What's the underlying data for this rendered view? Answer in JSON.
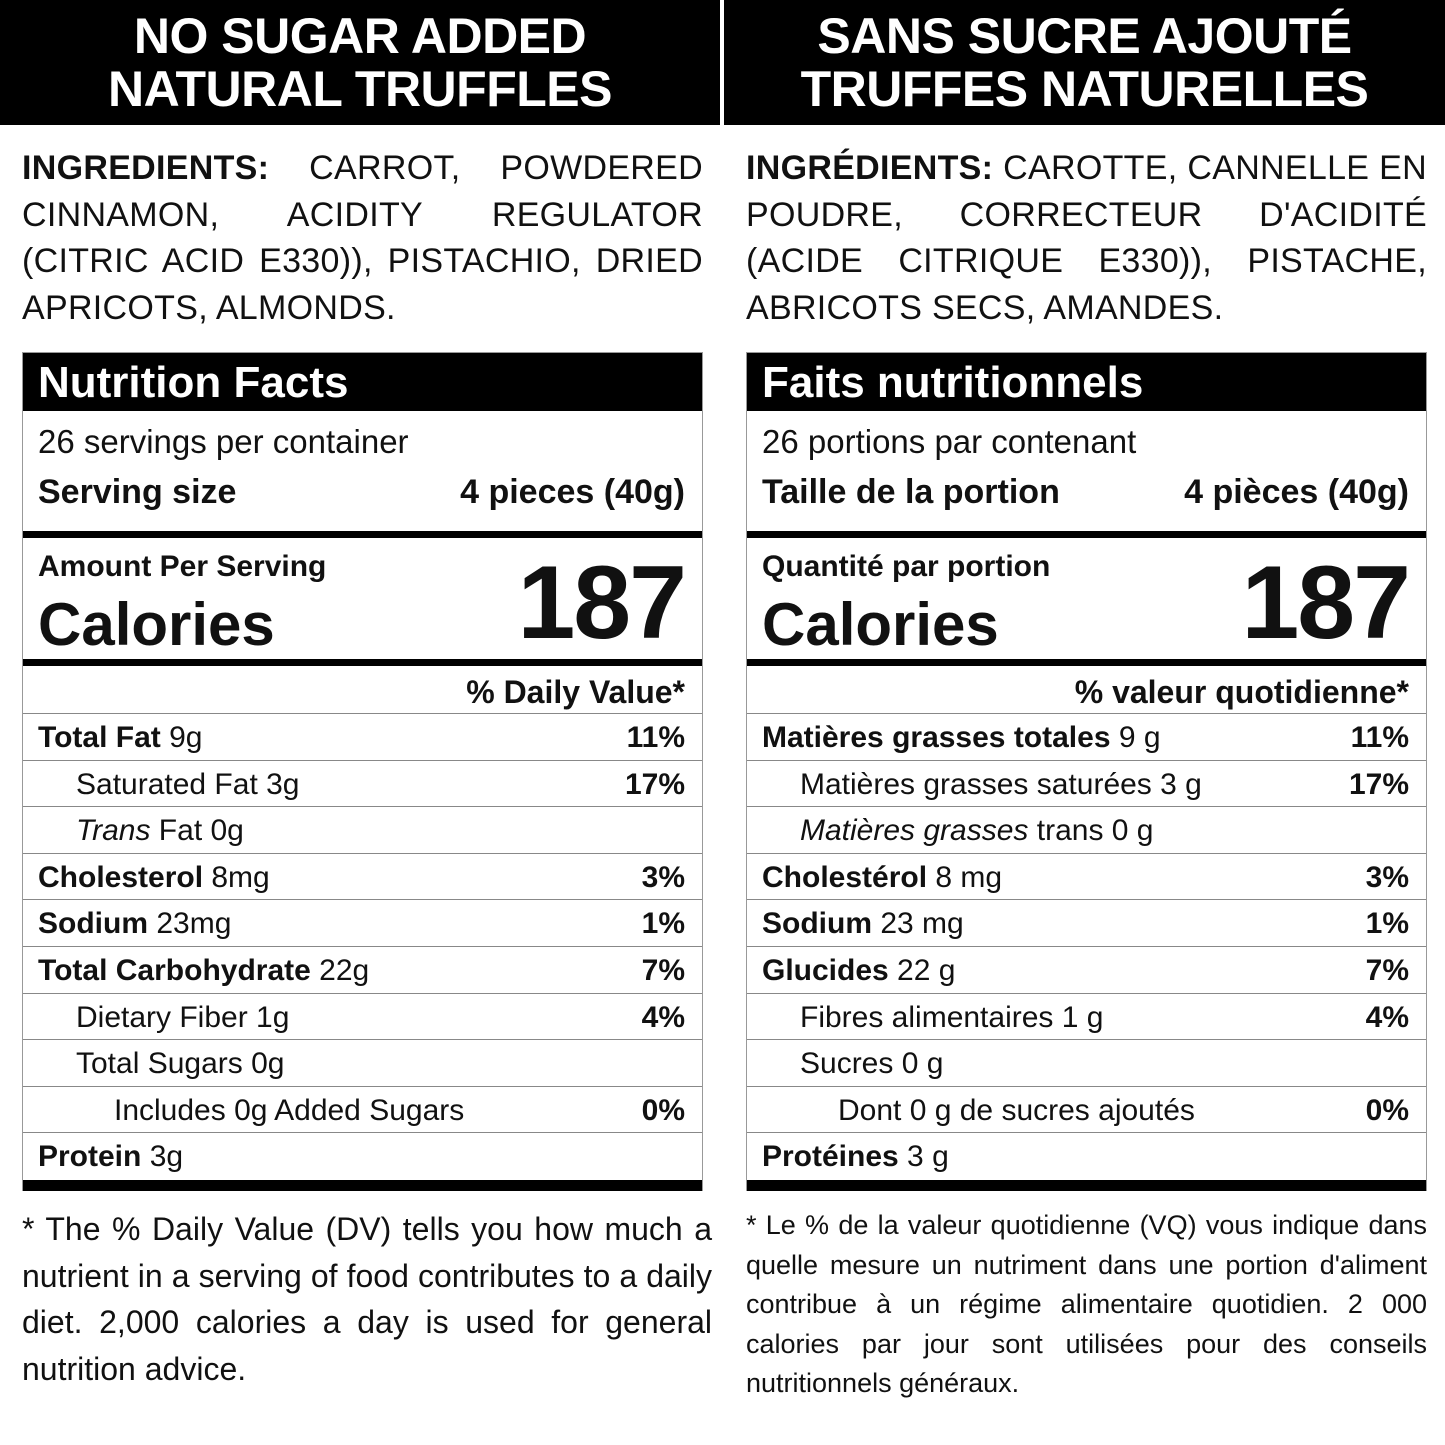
{
  "en": {
    "header": [
      "NO SUGAR ADDED",
      "NATURAL TRUFFLES"
    ],
    "ingredients_label": "INGREDIENTS:",
    "ingredients": " CARROT, POWDERED CINNAMON, ACIDITY REGULATOR (CITRIC ACID E330)), PISTACHIO, DRIED APRICOTS, ALMONDS.",
    "title": "Nutrition Facts",
    "servings": "26 servings per container",
    "serving_size_label": "Serving size",
    "serving_size": "4 pieces (40g)",
    "amount_per_serving": "Amount Per Serving",
    "calories_label": "Calories",
    "calories": "187",
    "dv_header": "% Daily Value*",
    "rows": [
      {
        "bold": "Total Fat",
        "rest": " 9g",
        "dv": "11%",
        "indent": 0
      },
      {
        "rest": "Saturated Fat 3g",
        "dv": "17%",
        "indent": 1
      },
      {
        "italic": "Trans",
        "rest": " Fat 0g",
        "dv": "",
        "indent": 1
      },
      {
        "bold": "Cholesterol",
        "rest": " 8mg",
        "dv": "3%",
        "indent": 0
      },
      {
        "bold": "Sodium",
        "rest": " 23mg",
        "dv": "1%",
        "indent": 0
      },
      {
        "bold": "Total Carbohydrate",
        "rest": " 22g",
        "dv": "7%",
        "indent": 0
      },
      {
        "rest": "Dietary Fiber 1g",
        "dv": "4%",
        "indent": 1
      },
      {
        "rest": "Total Sugars 0g",
        "dv": "",
        "indent": 1
      },
      {
        "rest": "Includes 0g Added Sugars",
        "dv": "0%",
        "indent": 2
      },
      {
        "bold": "Protein",
        "rest": " 3g",
        "dv": "",
        "indent": 0
      }
    ],
    "footnote": "* The % Daily Value (DV) tells you how much a nutrient in a serving of food contributes to a daily diet. 2,000 calories a day is used for general nutrition advice."
  },
  "fr": {
    "header": [
      "SANS SUCRE AJOUTÉ",
      "TRUFFES NATURELLES"
    ],
    "ingredients_label": "INGRÉDIENTS:",
    "ingredients": " CAROTTE, CANNELLE EN POUDRE, CORRECTEUR D'ACIDITÉ (ACIDE CITRIQUE E330)), PISTACHE, ABRICOTS SECS, AMANDES.",
    "title": "Faits nutritionnels",
    "servings": "26 portions par contenant",
    "serving_size_label": "Taille de la portion",
    "serving_size": "4 pièces (40g)",
    "amount_per_serving": "Quantité par portion",
    "calories_label": "Calories",
    "calories": "187",
    "dv_header": "% valeur quotidienne*",
    "rows": [
      {
        "bold": "Matières grasses totales",
        "rest": " 9 g",
        "dv": "11%",
        "indent": 0
      },
      {
        "rest": "Matières grasses saturées 3 g",
        "dv": "17%",
        "indent": 1
      },
      {
        "italic": "Matières grasses",
        "rest": " trans 0 g",
        "dv": "",
        "indent": 1
      },
      {
        "bold": "Cholestérol",
        "rest": " 8 mg",
        "dv": "3%",
        "indent": 0
      },
      {
        "bold": "Sodium",
        "rest": " 23 mg",
        "dv": "1%",
        "indent": 0
      },
      {
        "bold": "Glucides",
        "rest": " 22 g",
        "dv": "7%",
        "indent": 0
      },
      {
        "rest": "Fibres alimentaires 1 g",
        "dv": "4%",
        "indent": 1
      },
      {
        "rest": "Sucres 0 g",
        "dv": "",
        "indent": 1
      },
      {
        "rest": "Dont 0 g de sucres ajoutés",
        "dv": "0%",
        "indent": 2
      },
      {
        "bold": "Protéines",
        "rest": " 3 g",
        "dv": "",
        "indent": 0
      }
    ],
    "footnote": "* Le % de la valeur quotidienne (VQ) vous indique dans quelle mesure un nutriment dans une portion d'aliment contribue à un régime alimentaire quotidien. 2 000 calories par jour sont utilisées pour des conseils nutritionnels généraux."
  }
}
